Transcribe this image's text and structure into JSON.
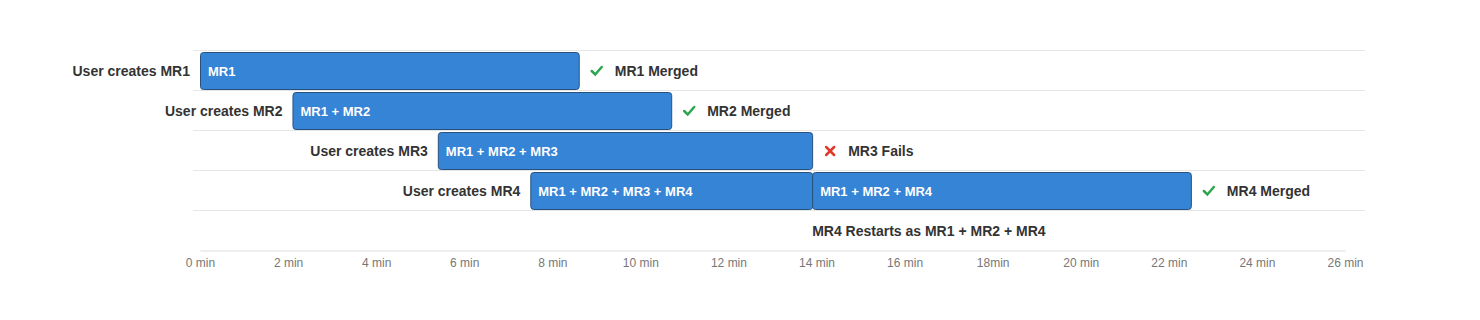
{
  "chart_data": {
    "type": "gantt",
    "xlim": [
      0,
      26
    ],
    "xticks": [
      {
        "value": 0,
        "label": "0 min"
      },
      {
        "value": 2,
        "label": "2 min"
      },
      {
        "value": 4,
        "label": "4 min"
      },
      {
        "value": 6,
        "label": "6 min"
      },
      {
        "value": 8,
        "label": "8 min"
      },
      {
        "value": 10,
        "label": "10 min"
      },
      {
        "value": 12,
        "label": "12 min"
      },
      {
        "value": 14,
        "label": "14 min"
      },
      {
        "value": 16,
        "label": "16 min"
      },
      {
        "value": 18,
        "label": "18min"
      },
      {
        "value": 20,
        "label": "20 min"
      },
      {
        "value": 22,
        "label": "22 min"
      },
      {
        "value": 24,
        "label": "24 min"
      },
      {
        "value": 26,
        "label": "26 min"
      }
    ],
    "grid": true,
    "series": [
      {
        "name": "User creates MR1",
        "color": "#3584d6",
        "segments": [
          {
            "label": "MR1",
            "start": 0,
            "end": 8.6
          }
        ],
        "outcome": "MR1 Merged",
        "marker": "check"
      },
      {
        "name": "User creates MR2",
        "color": "#3584d6",
        "segments": [
          {
            "label": "MR1 + MR2",
            "start": 2.1,
            "end": 10.7
          }
        ],
        "outcome": "MR2 Merged",
        "marker": "check"
      },
      {
        "name": "User creates MR3",
        "color": "#3584d6",
        "segments": [
          {
            "label": "MR1 + MR2 + MR3",
            "start": 5.4,
            "end": 13.9
          }
        ],
        "outcome": "MR3 Fails",
        "marker": "cross"
      },
      {
        "name": "User creates MR4",
        "color": "#3584d6",
        "segments": [
          {
            "label": "MR1 + MR2 + MR3 + MR4",
            "start": 7.5,
            "end": 13.9
          },
          {
            "label": "MR1 + MR2 + MR4",
            "start": 13.9,
            "end": 22.5
          }
        ],
        "outcome": "MR4 Merged",
        "marker": "check"
      }
    ],
    "annotations": [
      {
        "text": "MR4 Restarts as MR1 + MR2 + MR4",
        "x": 13.9
      }
    ]
  }
}
